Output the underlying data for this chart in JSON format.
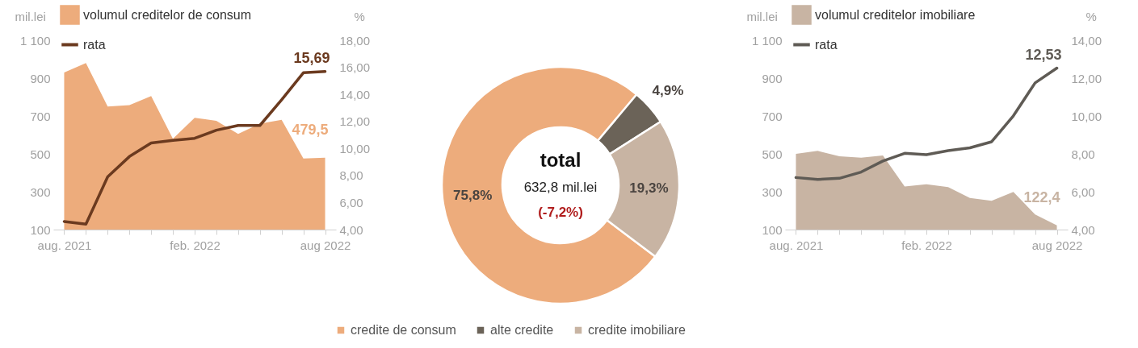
{
  "chart_data": [
    {
      "type": "area",
      "ylabel": "mil.lei",
      "y2label": "%",
      "categories": [
        "aug. 2021",
        null,
        null,
        null,
        null,
        null,
        "feb. 2022",
        null,
        null,
        null,
        null,
        null,
        "aug 2022"
      ],
      "series": [
        {
          "name": "volumul creditelor de consum",
          "type": "area",
          "color": "#edac7c",
          "values": [
            930,
            980,
            750,
            757,
            805,
            580,
            690,
            675,
            605,
            660,
            680,
            476,
            479.5
          ],
          "value_labels": [
            null,
            null,
            null,
            null,
            null,
            null,
            null,
            null,
            null,
            null,
            null,
            null,
            "479,5"
          ]
        },
        {
          "name": "rata",
          "type": "line",
          "axis": "y2",
          "color": "#6b3a1f",
          "values": [
            4.6,
            4.4,
            7.9,
            9.4,
            10.4,
            10.6,
            10.75,
            11.35,
            11.7,
            11.7,
            13.6,
            15.6,
            15.69
          ],
          "value_labels": [
            null,
            null,
            null,
            null,
            null,
            null,
            null,
            null,
            null,
            null,
            null,
            null,
            "15,69"
          ]
        }
      ],
      "ylim": [
        100,
        1100
      ],
      "yticks": [
        100,
        300,
        500,
        700,
        900,
        {
          "value": 1100,
          "label": "1 100"
        }
      ],
      "y2lim": [
        4,
        18
      ],
      "y2ticks": [
        {
          "value": 4,
          "label": "4,00"
        },
        {
          "value": 6,
          "label": "6,00"
        },
        {
          "value": 8,
          "label": "8,00"
        },
        {
          "value": 10,
          "label": "10,00"
        },
        {
          "value": 12,
          "label": "12,00"
        },
        {
          "value": 14,
          "label": "14,00"
        },
        {
          "value": 16,
          "label": "16,00"
        },
        {
          "value": 18,
          "label": "18,00"
        }
      ],
      "legend": "top left"
    },
    {
      "type": "donut",
      "categories": [
        "credite de consum",
        "alte credite",
        "credite imobiliare"
      ],
      "values": [
        75.8,
        4.9,
        19.3
      ],
      "colors": [
        "#edac7c",
        "#6b6358",
        "#c8b4a3"
      ],
      "value_labels": [
        "75,8%",
        "4,9%",
        "19,3%"
      ],
      "annotations": [
        "total",
        "632,8 mil.lei",
        "(-7,2%)"
      ],
      "legend": "bottom"
    },
    {
      "type": "area",
      "ylabel": "mil.lei",
      "y2label": "%",
      "categories": [
        "aug. 2021",
        null,
        null,
        null,
        null,
        null,
        "feb. 2022",
        null,
        null,
        null,
        null,
        null,
        "aug 2022"
      ],
      "series": [
        {
          "name": "volumul creditelor imobiliare",
          "type": "area",
          "color": "#c8b4a3",
          "values": [
            500,
            516,
            487,
            480,
            491,
            328,
            339,
            325,
            267,
            252,
            299,
            180,
            122.4
          ],
          "value_labels": [
            null,
            null,
            null,
            null,
            null,
            null,
            null,
            null,
            null,
            null,
            null,
            null,
            "122,4"
          ]
        },
        {
          "name": "rata",
          "type": "line",
          "axis": "y2",
          "color": "#5f5b55",
          "values": [
            6.75,
            6.65,
            6.71,
            7.04,
            7.62,
            8.03,
            7.96,
            8.17,
            8.32,
            8.64,
            10.01,
            11.75,
            12.53
          ],
          "value_labels": [
            null,
            null,
            null,
            null,
            null,
            null,
            null,
            null,
            null,
            null,
            null,
            null,
            "12,53"
          ]
        }
      ],
      "ylim": [
        100,
        1100
      ],
      "yticks": [
        100,
        300,
        500,
        700,
        900,
        {
          "value": 1100,
          "label": "1 100"
        }
      ],
      "y2lim": [
        4,
        14
      ],
      "y2ticks": [
        {
          "value": 4,
          "label": "4,00"
        },
        {
          "value": 6,
          "label": "6,00"
        },
        {
          "value": 8,
          "label": "8,00"
        },
        {
          "value": 10,
          "label": "10,00"
        },
        {
          "value": 12,
          "label": "12,00"
        },
        {
          "value": 14,
          "label": "14,00"
        }
      ],
      "legend": "top left"
    }
  ]
}
